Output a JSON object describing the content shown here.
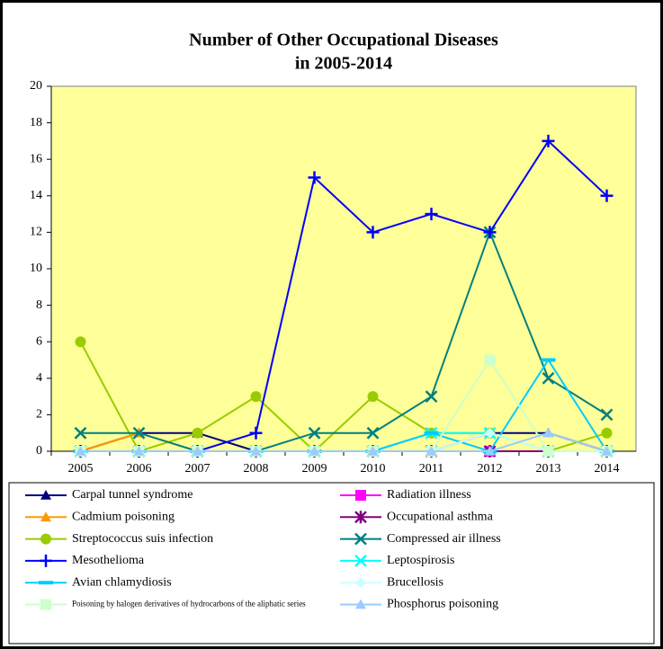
{
  "chart_data": {
    "type": "line",
    "title": [
      "Number of Other Occupational Diseases",
      "in 2005-2014"
    ],
    "categories": [
      "2005",
      "2006",
      "2007",
      "2008",
      "2009",
      "2010",
      "2011",
      "2012",
      "2013",
      "2014"
    ],
    "ylim": [
      0,
      20
    ],
    "yticks": [
      0,
      2,
      4,
      6,
      8,
      10,
      12,
      14,
      16,
      18,
      20
    ],
    "series": [
      {
        "name": "Carpal tunnel syndrome",
        "color": "#000080",
        "marker": "triangle",
        "values": [
          0,
          1,
          1,
          0,
          0,
          0,
          0,
          1,
          1,
          0
        ]
      },
      {
        "name": "Radiation illness",
        "color": "#ff00ff",
        "marker": "square",
        "values": [
          0,
          0,
          0,
          0,
          0,
          0,
          0,
          0,
          0,
          0
        ]
      },
      {
        "name": "Cadmium poisoning",
        "color": "#ff9900",
        "marker": "triangle",
        "values": [
          0,
          1,
          0,
          0,
          0,
          0,
          0,
          0,
          0,
          0
        ]
      },
      {
        "name": "Occupational asthma",
        "color": "#800080",
        "marker": "asterisk",
        "values": [
          0,
          0,
          0,
          0,
          0,
          0,
          0,
          0,
          0,
          0
        ]
      },
      {
        "name": "Streptococcus suis infection",
        "color": "#99cc00",
        "marker": "circle",
        "values": [
          6,
          0,
          1,
          3,
          0,
          3,
          1,
          1,
          0,
          1
        ]
      },
      {
        "name": "Compressed air illness",
        "color": "#008080",
        "marker": "x",
        "values": [
          1,
          1,
          0,
          0,
          1,
          1,
          3,
          12,
          4,
          2
        ]
      },
      {
        "name": "Mesothelioma",
        "color": "#0000ff",
        "marker": "plus",
        "values": [
          0,
          0,
          0,
          1,
          15,
          12,
          13,
          12,
          17,
          14
        ]
      },
      {
        "name": "Leptospirosis",
        "color": "#00ffff",
        "marker": "x",
        "values": [
          0,
          0,
          0,
          0,
          0,
          0,
          1,
          1,
          0,
          0
        ]
      },
      {
        "name": "Avian chlamydiosis",
        "color": "#00ccff",
        "marker": "dash",
        "values": [
          0,
          0,
          0,
          0,
          0,
          0,
          1,
          0,
          5,
          0
        ]
      },
      {
        "name": "Brucellosis",
        "color": "#ccffff",
        "marker": "diamond",
        "values": [
          0,
          0,
          0,
          0,
          0,
          0,
          0,
          1,
          0,
          0
        ]
      },
      {
        "name": "Poisoning by halogen derivatives of hydrocarbons of the aliphatic series",
        "color": "#ccffcc",
        "marker": "square",
        "values": [
          0,
          0,
          0,
          0,
          0,
          0,
          0,
          5,
          0,
          0
        ]
      },
      {
        "name": "Phosphorus poisoning",
        "color": "#99ccff",
        "marker": "triangle",
        "values": [
          0,
          0,
          0,
          0,
          0,
          0,
          0,
          0,
          1,
          0
        ]
      }
    ]
  }
}
